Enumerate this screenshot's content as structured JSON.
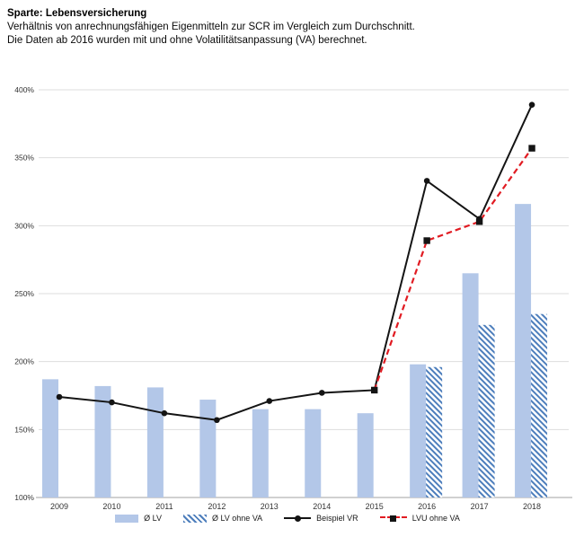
{
  "header": {
    "title": "Sparte: Lebensversicherung",
    "subtitle_line1": "Verhältnis von anrechnungsfähigen Eigenmitteln zur SCR im Vergleich zum Durchschnitt.",
    "subtitle_line2": "Die Daten ab 2016 wurden mit und ohne Volatilitätsanpassung (VA) berechnet."
  },
  "chart_data": {
    "type": "bar",
    "subtype": "combo-bar-line",
    "title": "Sparte: Lebensversicherung",
    "xlabel": "",
    "ylabel": "",
    "categories": [
      "2009",
      "2010",
      "2011",
      "2012",
      "2013",
      "2014",
      "2015",
      "2016",
      "2017",
      "2018"
    ],
    "y_axis": {
      "min": 100,
      "max": 400,
      "step": 50,
      "unit": "%",
      "tick_labels": [
        "100%",
        "150%",
        "200%",
        "250%",
        "300%",
        "350%",
        "400%"
      ]
    },
    "grid": true,
    "grid_color": "#dddddd",
    "axis_line_color": "#b3b3b3",
    "tick_text_color": "#333333",
    "legend_position": "bottom",
    "series": [
      {
        "name": "Ø LV",
        "type": "bar",
        "pattern": "solid",
        "color": "#b3c7e8",
        "values": [
          187,
          182,
          181,
          172,
          165,
          165,
          162,
          198,
          265,
          316
        ]
      },
      {
        "name": "Ø LV ohne VA",
        "type": "bar",
        "pattern": "diagonal-hatch",
        "color": "#4d7ebc",
        "values": [
          null,
          null,
          null,
          null,
          null,
          null,
          null,
          196,
          227,
          235
        ]
      },
      {
        "name": "Beispiel VR",
        "type": "line",
        "line_style": "solid",
        "marker": "circle",
        "color": "#141414",
        "marker_color": "#141414",
        "values": [
          174,
          170,
          162,
          157,
          171,
          177,
          179,
          333,
          305,
          389
        ]
      },
      {
        "name": "LVU ohne VA",
        "type": "line",
        "line_style": "dashed",
        "marker": "square",
        "color": "#e11b22",
        "marker_color": "#141414",
        "values": [
          null,
          null,
          null,
          null,
          null,
          null,
          179,
          289,
          303,
          357
        ]
      }
    ]
  }
}
